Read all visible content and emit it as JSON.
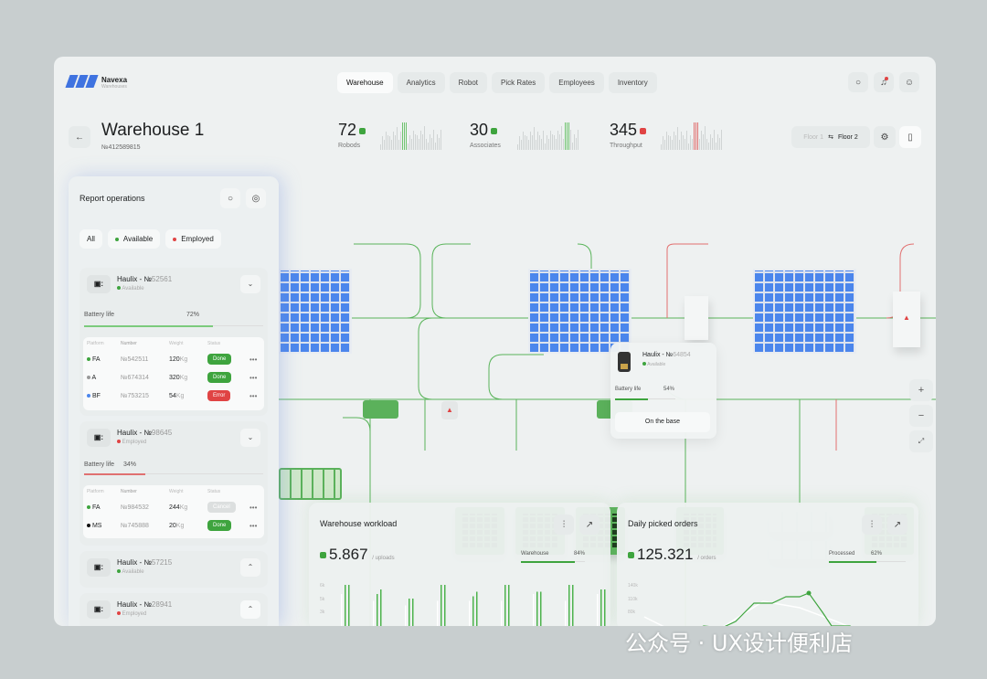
{
  "header": {
    "brand": "Navexa",
    "brand_sub": "Warehouses",
    "tabs": [
      "Warehouse",
      "Analytics",
      "Robot",
      "Pick Rates",
      "Employees",
      "Inventory"
    ],
    "active_tab": "Warehouse",
    "icons": [
      "search-icon",
      "bell-icon",
      "user-icon"
    ]
  },
  "page": {
    "title": "Warehouse 1",
    "id": "№412589815",
    "back_icon": "arrow-left-icon"
  },
  "stats": [
    {
      "value": "72",
      "label": "Robods",
      "trend": "up",
      "color": "#3ea43e"
    },
    {
      "value": "30",
      "label": "Associates",
      "trend": "up",
      "color": "#3ea43e"
    },
    {
      "value": "345",
      "label": "Throughput",
      "trend": "down",
      "color": "#e04444"
    }
  ],
  "floor": {
    "from": "Floor 1",
    "to": "Floor 2"
  },
  "colors": {
    "accent_green": "#3ea43e",
    "error_red": "#e04444",
    "rack_blue": "#4b86ec"
  },
  "report": {
    "title": "Report operations",
    "filters": [
      "All",
      "Available",
      "Employed"
    ],
    "robots": [
      {
        "prefix": "Haulix - №",
        "number": "52561",
        "status": "Available",
        "battery_label": "Battery life",
        "battery": "72%",
        "battery_value": 72,
        "table": {
          "headers": [
            "Platform",
            "Number",
            "Weight",
            "Status"
          ],
          "rows": [
            {
              "platform": "FA",
              "dot": "#3ea43e",
              "number": "№542511",
              "weight": "120",
              "unit": "Kg",
              "status": "Done"
            },
            {
              "platform": "A",
              "dot": "#999999",
              "number": "№674314",
              "weight": "320",
              "unit": "Kg",
              "status": "Done"
            },
            {
              "platform": "BF",
              "dot": "#4b86ec",
              "number": "№753215",
              "weight": "54",
              "unit": "Kg",
              "status": "Error"
            }
          ]
        }
      },
      {
        "prefix": "Haulix - №",
        "number": "98645",
        "status": "Employed",
        "battery_label": "Battery life",
        "battery": "34%",
        "battery_value": 34,
        "table": {
          "headers": [
            "Platform",
            "Number",
            "Weight",
            "Status"
          ],
          "rows": [
            {
              "platform": "FA",
              "dot": "#3ea43e",
              "number": "№984532",
              "weight": "244",
              "unit": "Kg",
              "status": "Cancel"
            },
            {
              "platform": "MS",
              "dot": "#111111",
              "number": "№745888",
              "weight": "20",
              "unit": "Kg",
              "status": "Done"
            }
          ]
        }
      },
      {
        "prefix": "Haulix - №",
        "number": "57215",
        "status": "Available"
      },
      {
        "prefix": "Haulix - №",
        "number": "28941",
        "status": "Employed"
      }
    ]
  },
  "popup": {
    "prefix": "Haulix - №",
    "number": "64854",
    "status": "Available",
    "battery_label": "Battery life",
    "battery": "54%",
    "battery_value": 54,
    "action": "On the base"
  },
  "map_controls": [
    "+",
    "−",
    "expand-icon"
  ],
  "workload": {
    "title": "Warehouse workload",
    "value": "5.867",
    "unit": "/ uploads",
    "meter_label": "Warehouse",
    "meter": "84%",
    "meter_value": 84,
    "ticks": [
      "6k",
      "5k",
      "3k"
    ]
  },
  "orders": {
    "title": "Daily picked orders",
    "value": "125.321",
    "unit": "/ orders",
    "meter_label": "Processed",
    "meter": "62%",
    "meter_value": 62,
    "ticks": [
      "140k",
      "110k",
      "80k"
    ]
  },
  "watermark": "公众号 · UX设计便利店"
}
